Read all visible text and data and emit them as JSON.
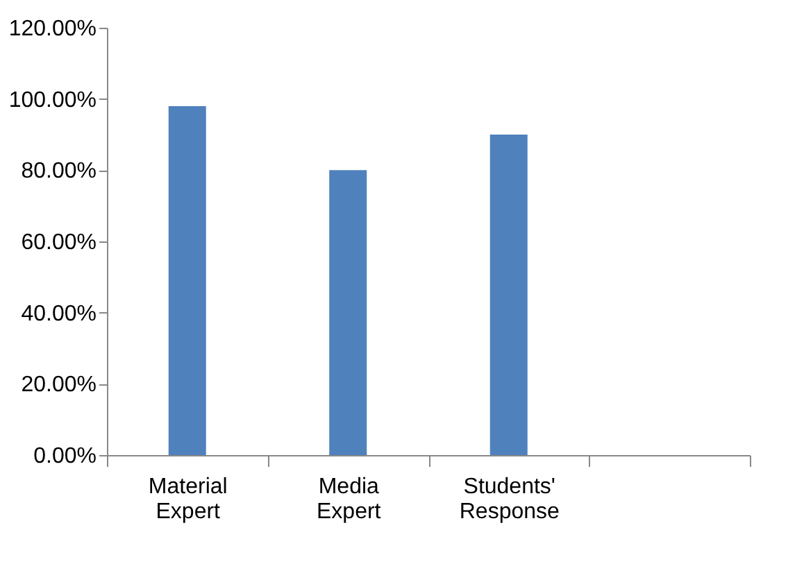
{
  "chart_data": {
    "type": "bar",
    "categories": [
      "Material Expert",
      "Media Expert",
      "Students' Response",
      null
    ],
    "values": [
      98,
      80,
      90,
      null
    ],
    "color": "#4f81bd",
    "ylim": [
      0,
      120
    ],
    "yticks": [
      {
        "value": 0,
        "label": "0.00%"
      },
      {
        "value": 20,
        "label": "20.00%"
      },
      {
        "value": 40,
        "label": "40.00%"
      },
      {
        "value": 60,
        "label": "60.00%"
      },
      {
        "value": 80,
        "label": "80.00%"
      },
      {
        "value": 100,
        "label": "100.00%"
      },
      {
        "value": 120,
        "label": "120.00%"
      }
    ],
    "grid": false
  }
}
